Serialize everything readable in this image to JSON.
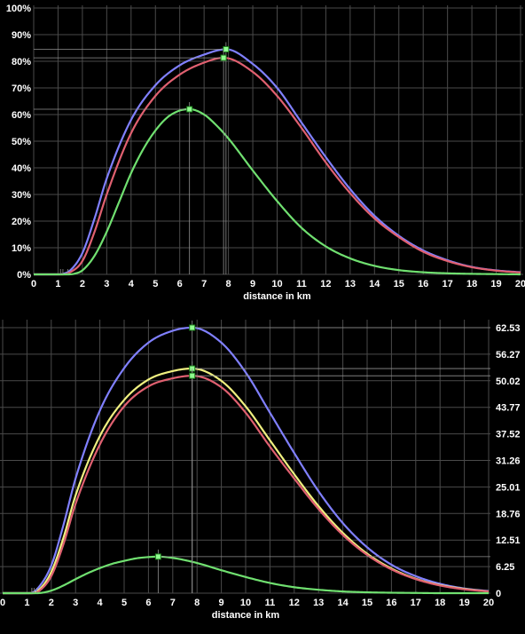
{
  "chart_data": [
    {
      "type": "line",
      "xlabel": "distance in km",
      "xlim": [
        0,
        20
      ],
      "ylim": [
        0,
        100
      ],
      "x_ticks": [
        "0",
        "1",
        "2",
        "3",
        "4",
        "5",
        "6",
        "7",
        "8",
        "9",
        "10",
        "11",
        "12",
        "13",
        "14",
        "15",
        "16",
        "17",
        "18",
        "19",
        "20"
      ],
      "y_ticks": [
        "0%",
        "10%",
        "20%",
        "30%",
        "40%",
        "50%",
        "60%",
        "70%",
        "80%",
        "90%",
        "100%"
      ],
      "grid": true,
      "series": [
        {
          "color": "#8080ff",
          "peak_x": 7.9,
          "peak_y": 84.5,
          "onset_x": 1.1,
          "x": [
            0,
            1,
            1.2,
            1.5,
            2,
            2.5,
            3,
            4,
            5,
            6,
            7,
            7.9,
            9,
            10,
            11,
            12,
            13,
            14,
            15,
            16,
            17,
            18,
            19,
            20
          ],
          "y": [
            0,
            0,
            0.2,
            1.5,
            8,
            21,
            36,
            58,
            71,
            78.5,
            82.5,
            84.5,
            79,
            70,
            57,
            44,
            32,
            22,
            14.5,
            9,
            5.3,
            2.8,
            1.5,
            0.8
          ]
        },
        {
          "color": "#e06070",
          "peak_x": 7.8,
          "peak_y": 81.3,
          "onset_x": 1.2,
          "x": [
            0,
            1,
            1.2,
            1.5,
            2,
            2.5,
            3,
            4,
            5,
            6,
            7,
            7.8,
            9,
            10,
            11,
            12,
            13,
            14,
            15,
            16,
            17,
            18,
            19,
            20
          ],
          "y": [
            0,
            0,
            0,
            0.8,
            5,
            16,
            30,
            53,
            67,
            75,
            79.5,
            81.3,
            76,
            67,
            55,
            42,
            30.5,
            21,
            14,
            8.5,
            5,
            2.7,
            1.4,
            0.7
          ]
        },
        {
          "color": "#70e070",
          "peak_x": 6.4,
          "peak_y": 62.0,
          "onset_x": 1.4,
          "x": [
            0,
            1,
            1.4,
            1.7,
            2,
            2.5,
            3,
            3.5,
            4,
            4.5,
            5,
            5.5,
            6,
            6.4,
            7,
            7.5,
            8,
            9,
            10,
            11,
            12,
            13,
            14,
            15,
            16,
            17,
            18,
            19,
            20
          ],
          "y": [
            0,
            0,
            0,
            0.3,
            1.5,
            7,
            16,
            27,
            38,
            47,
            54,
            59,
            61.5,
            62,
            60,
            56,
            51,
            39,
            27.5,
            17.5,
            10.5,
            6,
            3.2,
            1.6,
            0.8,
            0.4,
            0.2,
            0.1,
            0
          ]
        }
      ]
    },
    {
      "type": "line",
      "xlabel": "distance in km",
      "xlim": [
        0,
        20
      ],
      "ylim": [
        0,
        62.53
      ],
      "x_ticks": [
        "0",
        "1",
        "2",
        "3",
        "4",
        "5",
        "6",
        "7",
        "8",
        "9",
        "10",
        "11",
        "12",
        "13",
        "14",
        "15",
        "16",
        "17",
        "18",
        "19",
        "20"
      ],
      "y_ticks": [
        "0",
        "6.25",
        "12.51",
        "18.76",
        "25.01",
        "31.26",
        "37.52",
        "43.77",
        "50.02",
        "56.27",
        "62.53"
      ],
      "grid": true,
      "series": [
        {
          "color": "#8080ff",
          "peak_x": 7.8,
          "peak_y": 62.53,
          "onset_x": 1.2,
          "x": [
            0,
            1,
            1.2,
            1.5,
            2,
            2.5,
            3,
            4,
            5,
            6,
            7,
            7.8,
            9,
            10,
            11,
            12,
            13,
            14,
            15,
            16,
            17,
            18,
            19,
            20
          ],
          "y": [
            0,
            0,
            0.1,
            1.5,
            6.5,
            16,
            27,
            43,
            53,
            59,
            61.8,
            62.53,
            59,
            52,
            42.5,
            33,
            24,
            16.5,
            10.8,
            6.7,
            4,
            2.2,
            1.1,
            0.5
          ]
        },
        {
          "color": "#f0f080",
          "peak_x": 7.8,
          "peak_y": 52.9,
          "onset_x": 1.2,
          "x": [
            0,
            1,
            1.2,
            1.5,
            2,
            2.5,
            3,
            4,
            5,
            6,
            7,
            7.8,
            9,
            10,
            11,
            12,
            13,
            14,
            15,
            16,
            17,
            18,
            19,
            20
          ],
          "y": [
            0,
            0,
            0,
            0.8,
            5,
            13,
            23,
            37,
            45.5,
            50.3,
            52.3,
            52.9,
            50,
            44,
            36,
            28,
            20.5,
            14.2,
            9.3,
            5.8,
            3.4,
            1.9,
            1,
            0.4
          ]
        },
        {
          "color": "#e06070",
          "peak_x": 7.8,
          "peak_y": 51.2,
          "onset_x": 1.3,
          "x": [
            0,
            1,
            1.3,
            1.5,
            2,
            2.5,
            3,
            4,
            5,
            6,
            7,
            7.8,
            9,
            10,
            11,
            12,
            13,
            14,
            15,
            16,
            17,
            18,
            19,
            20
          ],
          "y": [
            0,
            0,
            0,
            0.5,
            4,
            11.5,
            21,
            35,
            44,
            48.7,
            50.6,
            51.2,
            48.5,
            42.5,
            34.5,
            27,
            19.8,
            13.7,
            9,
            5.6,
            3.3,
            1.8,
            0.9,
            0.4
          ]
        },
        {
          "color": "#70e070",
          "peak_x": 6.4,
          "peak_y": 8.6,
          "onset_x": 1.4,
          "x": [
            0,
            1,
            1.4,
            2,
            2.5,
            3,
            3.5,
            4,
            4.5,
            5,
            5.5,
            6,
            6.4,
            7,
            8,
            9,
            10,
            11,
            12,
            13,
            14,
            15,
            16,
            17,
            18,
            19,
            20
          ],
          "y": [
            0,
            0,
            0,
            0.6,
            1.8,
            3.3,
            4.7,
            5.9,
            6.9,
            7.6,
            8.2,
            8.5,
            8.6,
            8.3,
            7.1,
            5.4,
            3.8,
            2.4,
            1.4,
            0.8,
            0.4,
            0.2,
            0.1,
            0.05,
            0,
            0,
            0
          ]
        }
      ]
    }
  ]
}
